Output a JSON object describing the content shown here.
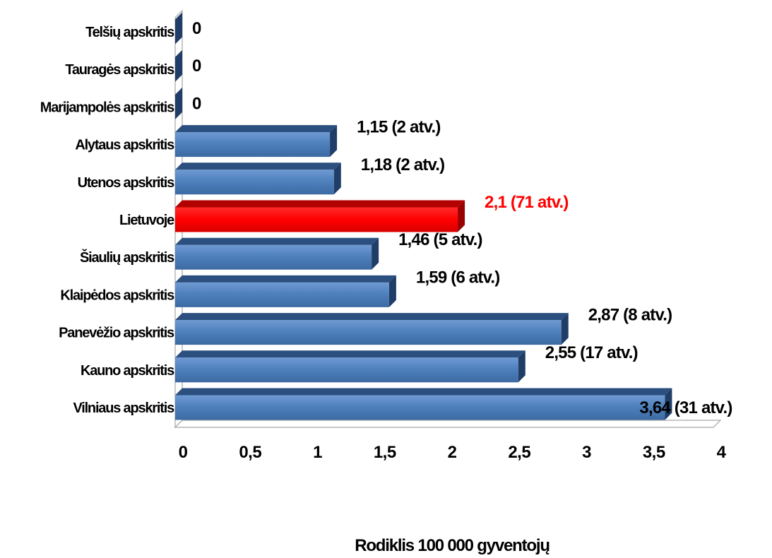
{
  "chart_data": {
    "type": "bar",
    "orientation": "horizontal",
    "xlabel": "Rodiklis 100 000 gyventojų",
    "xlim": [
      0,
      4
    ],
    "xticks": [
      "0",
      "0,5",
      "1",
      "1,5",
      "2",
      "2,5",
      "3",
      "3,5",
      "4"
    ],
    "grid": false,
    "legend": "none",
    "colors": {
      "default": "#4f81bd",
      "highlight": "#ff0000"
    },
    "categories": [
      "Vilniaus apskritis",
      "Kauno apskritis",
      "Panevėžio apskritis",
      "Klaipėdos apskritis",
      "Šiaulių apskritis",
      "Lietuvoje",
      "Utenos apskritis",
      "Alytaus apskritis",
      "Marijampolės apskritis",
      "Tauragės apskritis",
      "Telšių apskritis"
    ],
    "values": [
      3.64,
      2.55,
      2.87,
      1.59,
      1.46,
      2.1,
      1.18,
      1.15,
      0,
      0,
      0
    ],
    "data_labels": [
      "3,64 (31 atv.)",
      "2,55 (17 atv.)",
      "2,87 (8 atv.)",
      "1,59 (6 atv.)",
      "1,46 (5 atv.)",
      "2,1 (71 atv.)",
      "1,18 (2 atv.)",
      "1,15 (2 atv.)",
      "0",
      "0",
      "0"
    ],
    "highlight": [
      false,
      false,
      false,
      false,
      false,
      true,
      false,
      false,
      false,
      false,
      false
    ]
  }
}
